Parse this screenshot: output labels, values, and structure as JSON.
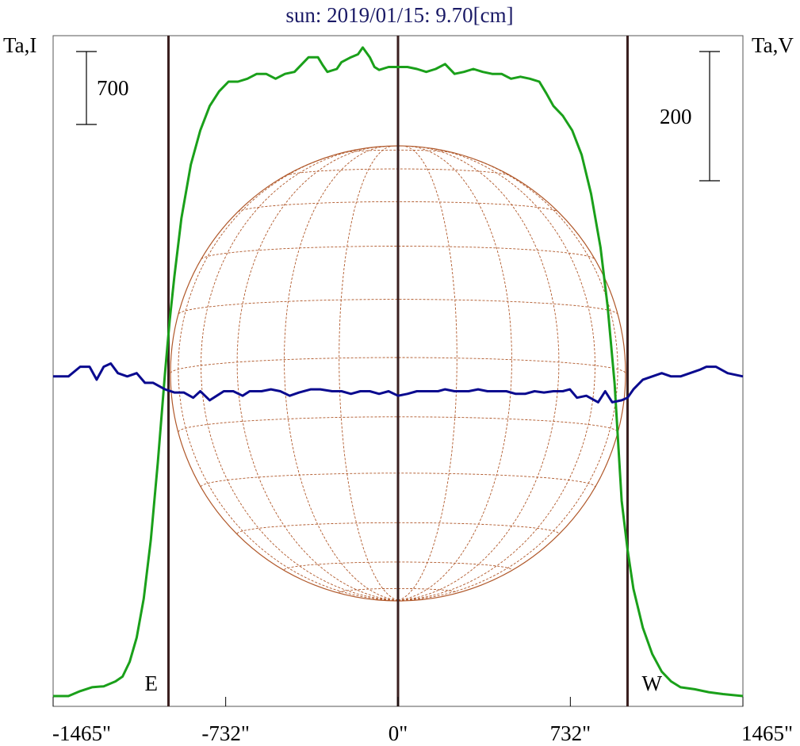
{
  "chart_data": {
    "type": "line",
    "title": "sun: 2019/01/15: 9.70[cm]",
    "left_axis_label": "Ta,I",
    "right_axis_label": "Ta,V",
    "left_scale_bar": "700",
    "right_scale_bar": "200",
    "xlim": [
      -1465,
      1465
    ],
    "x_ticks": [
      {
        "value": -1465,
        "label": "-1465\""
      },
      {
        "value": -732,
        "label": "-732\""
      },
      {
        "value": 0,
        "label": "0\""
      },
      {
        "value": 732,
        "label": "732\""
      },
      {
        "value": 1465,
        "label": "1465\""
      }
    ],
    "limb_markers": [
      {
        "x": -975,
        "label": "E"
      },
      {
        "x": 0,
        "label": ""
      },
      {
        "x": 975,
        "label": "W"
      }
    ],
    "I_scale": {
      "min": 0,
      "max": 6430,
      "bar_value": 700
    },
    "V_scale": {
      "min": -500,
      "max": 500,
      "bar_value": 200
    },
    "series": [
      {
        "color": "#1aa01a",
        "scale": "I",
        "points": [
          [
            -1465,
            0
          ],
          [
            -1400,
            0
          ],
          [
            -1350,
            50
          ],
          [
            -1300,
            90
          ],
          [
            -1250,
            100
          ],
          [
            -1200,
            150
          ],
          [
            -1170,
            200
          ],
          [
            -1140,
            350
          ],
          [
            -1110,
            600
          ],
          [
            -1080,
            1000
          ],
          [
            -1050,
            1600
          ],
          [
            -1020,
            2400
          ],
          [
            -990,
            3300
          ],
          [
            -970,
            3850
          ],
          [
            -950,
            4300
          ],
          [
            -920,
            4900
          ],
          [
            -880,
            5450
          ],
          [
            -840,
            5800
          ],
          [
            -800,
            6050
          ],
          [
            -760,
            6200
          ],
          [
            -720,
            6300
          ],
          [
            -680,
            6300
          ],
          [
            -640,
            6330
          ],
          [
            -600,
            6380
          ],
          [
            -560,
            6380
          ],
          [
            -520,
            6330
          ],
          [
            -480,
            6380
          ],
          [
            -440,
            6400
          ],
          [
            -400,
            6500
          ],
          [
            -380,
            6550
          ],
          [
            -340,
            6550
          ],
          [
            -320,
            6470
          ],
          [
            -300,
            6400
          ],
          [
            -260,
            6430
          ],
          [
            -240,
            6500
          ],
          [
            -200,
            6550
          ],
          [
            -170,
            6580
          ],
          [
            -150,
            6650
          ],
          [
            -120,
            6550
          ],
          [
            -100,
            6450
          ],
          [
            -80,
            6420
          ],
          [
            -40,
            6450
          ],
          [
            0,
            6450
          ],
          [
            40,
            6450
          ],
          [
            80,
            6430
          ],
          [
            120,
            6400
          ],
          [
            160,
            6430
          ],
          [
            200,
            6480
          ],
          [
            240,
            6380
          ],
          [
            280,
            6400
          ],
          [
            320,
            6430
          ],
          [
            360,
            6400
          ],
          [
            400,
            6380
          ],
          [
            440,
            6380
          ],
          [
            480,
            6330
          ],
          [
            520,
            6350
          ],
          [
            560,
            6330
          ],
          [
            600,
            6300
          ],
          [
            630,
            6180
          ],
          [
            660,
            6050
          ],
          [
            700,
            5950
          ],
          [
            740,
            5800
          ],
          [
            780,
            5550
          ],
          [
            820,
            5150
          ],
          [
            860,
            4600
          ],
          [
            890,
            4000
          ],
          [
            920,
            3200
          ],
          [
            950,
            2000
          ],
          [
            975,
            1500
          ],
          [
            1000,
            1100
          ],
          [
            1040,
            700
          ],
          [
            1080,
            430
          ],
          [
            1120,
            250
          ],
          [
            1160,
            150
          ],
          [
            1200,
            90
          ],
          [
            1260,
            70
          ],
          [
            1320,
            40
          ],
          [
            1380,
            20
          ],
          [
            1465,
            0
          ]
        ]
      },
      {
        "color": "#0a0a8f",
        "scale": "V",
        "points": [
          [
            -1465,
            15
          ],
          [
            -1400,
            15
          ],
          [
            -1350,
            30
          ],
          [
            -1310,
            30
          ],
          [
            -1280,
            10
          ],
          [
            -1250,
            30
          ],
          [
            -1220,
            35
          ],
          [
            -1190,
            20
          ],
          [
            -1150,
            15
          ],
          [
            -1110,
            20
          ],
          [
            -1075,
            5
          ],
          [
            -1040,
            5
          ],
          [
            -990,
            -5
          ],
          [
            -950,
            -10
          ],
          [
            -910,
            -10
          ],
          [
            -870,
            -18
          ],
          [
            -840,
            -8
          ],
          [
            -800,
            -22
          ],
          [
            -770,
            -15
          ],
          [
            -740,
            -8
          ],
          [
            -700,
            -8
          ],
          [
            -660,
            -15
          ],
          [
            -630,
            -8
          ],
          [
            -580,
            -8
          ],
          [
            -540,
            -5
          ],
          [
            -500,
            -8
          ],
          [
            -460,
            -15
          ],
          [
            -420,
            -10
          ],
          [
            -370,
            -5
          ],
          [
            -330,
            -5
          ],
          [
            -280,
            -8
          ],
          [
            -240,
            -8
          ],
          [
            -200,
            -12
          ],
          [
            -160,
            -8
          ],
          [
            -120,
            -8
          ],
          [
            -80,
            -12
          ],
          [
            -40,
            -8
          ],
          [
            0,
            -15
          ],
          [
            40,
            -12
          ],
          [
            80,
            -8
          ],
          [
            120,
            -8
          ],
          [
            170,
            -8
          ],
          [
            200,
            -5
          ],
          [
            240,
            -8
          ],
          [
            300,
            -8
          ],
          [
            340,
            -5
          ],
          [
            380,
            -8
          ],
          [
            420,
            -8
          ],
          [
            460,
            -8
          ],
          [
            500,
            -12
          ],
          [
            540,
            -12
          ],
          [
            580,
            -8
          ],
          [
            620,
            -10
          ],
          [
            660,
            -8
          ],
          [
            700,
            -8
          ],
          [
            730,
            -5
          ],
          [
            760,
            -18
          ],
          [
            800,
            -15
          ],
          [
            850,
            -25
          ],
          [
            880,
            -8
          ],
          [
            910,
            -25
          ],
          [
            950,
            -22
          ],
          [
            975,
            -18
          ],
          [
            1000,
            -5
          ],
          [
            1040,
            10
          ],
          [
            1080,
            15
          ],
          [
            1120,
            20
          ],
          [
            1160,
            15
          ],
          [
            1200,
            15
          ],
          [
            1240,
            20
          ],
          [
            1280,
            25
          ],
          [
            1310,
            30
          ],
          [
            1350,
            30
          ],
          [
            1400,
            20
          ],
          [
            1465,
            15
          ]
        ]
      }
    ]
  }
}
